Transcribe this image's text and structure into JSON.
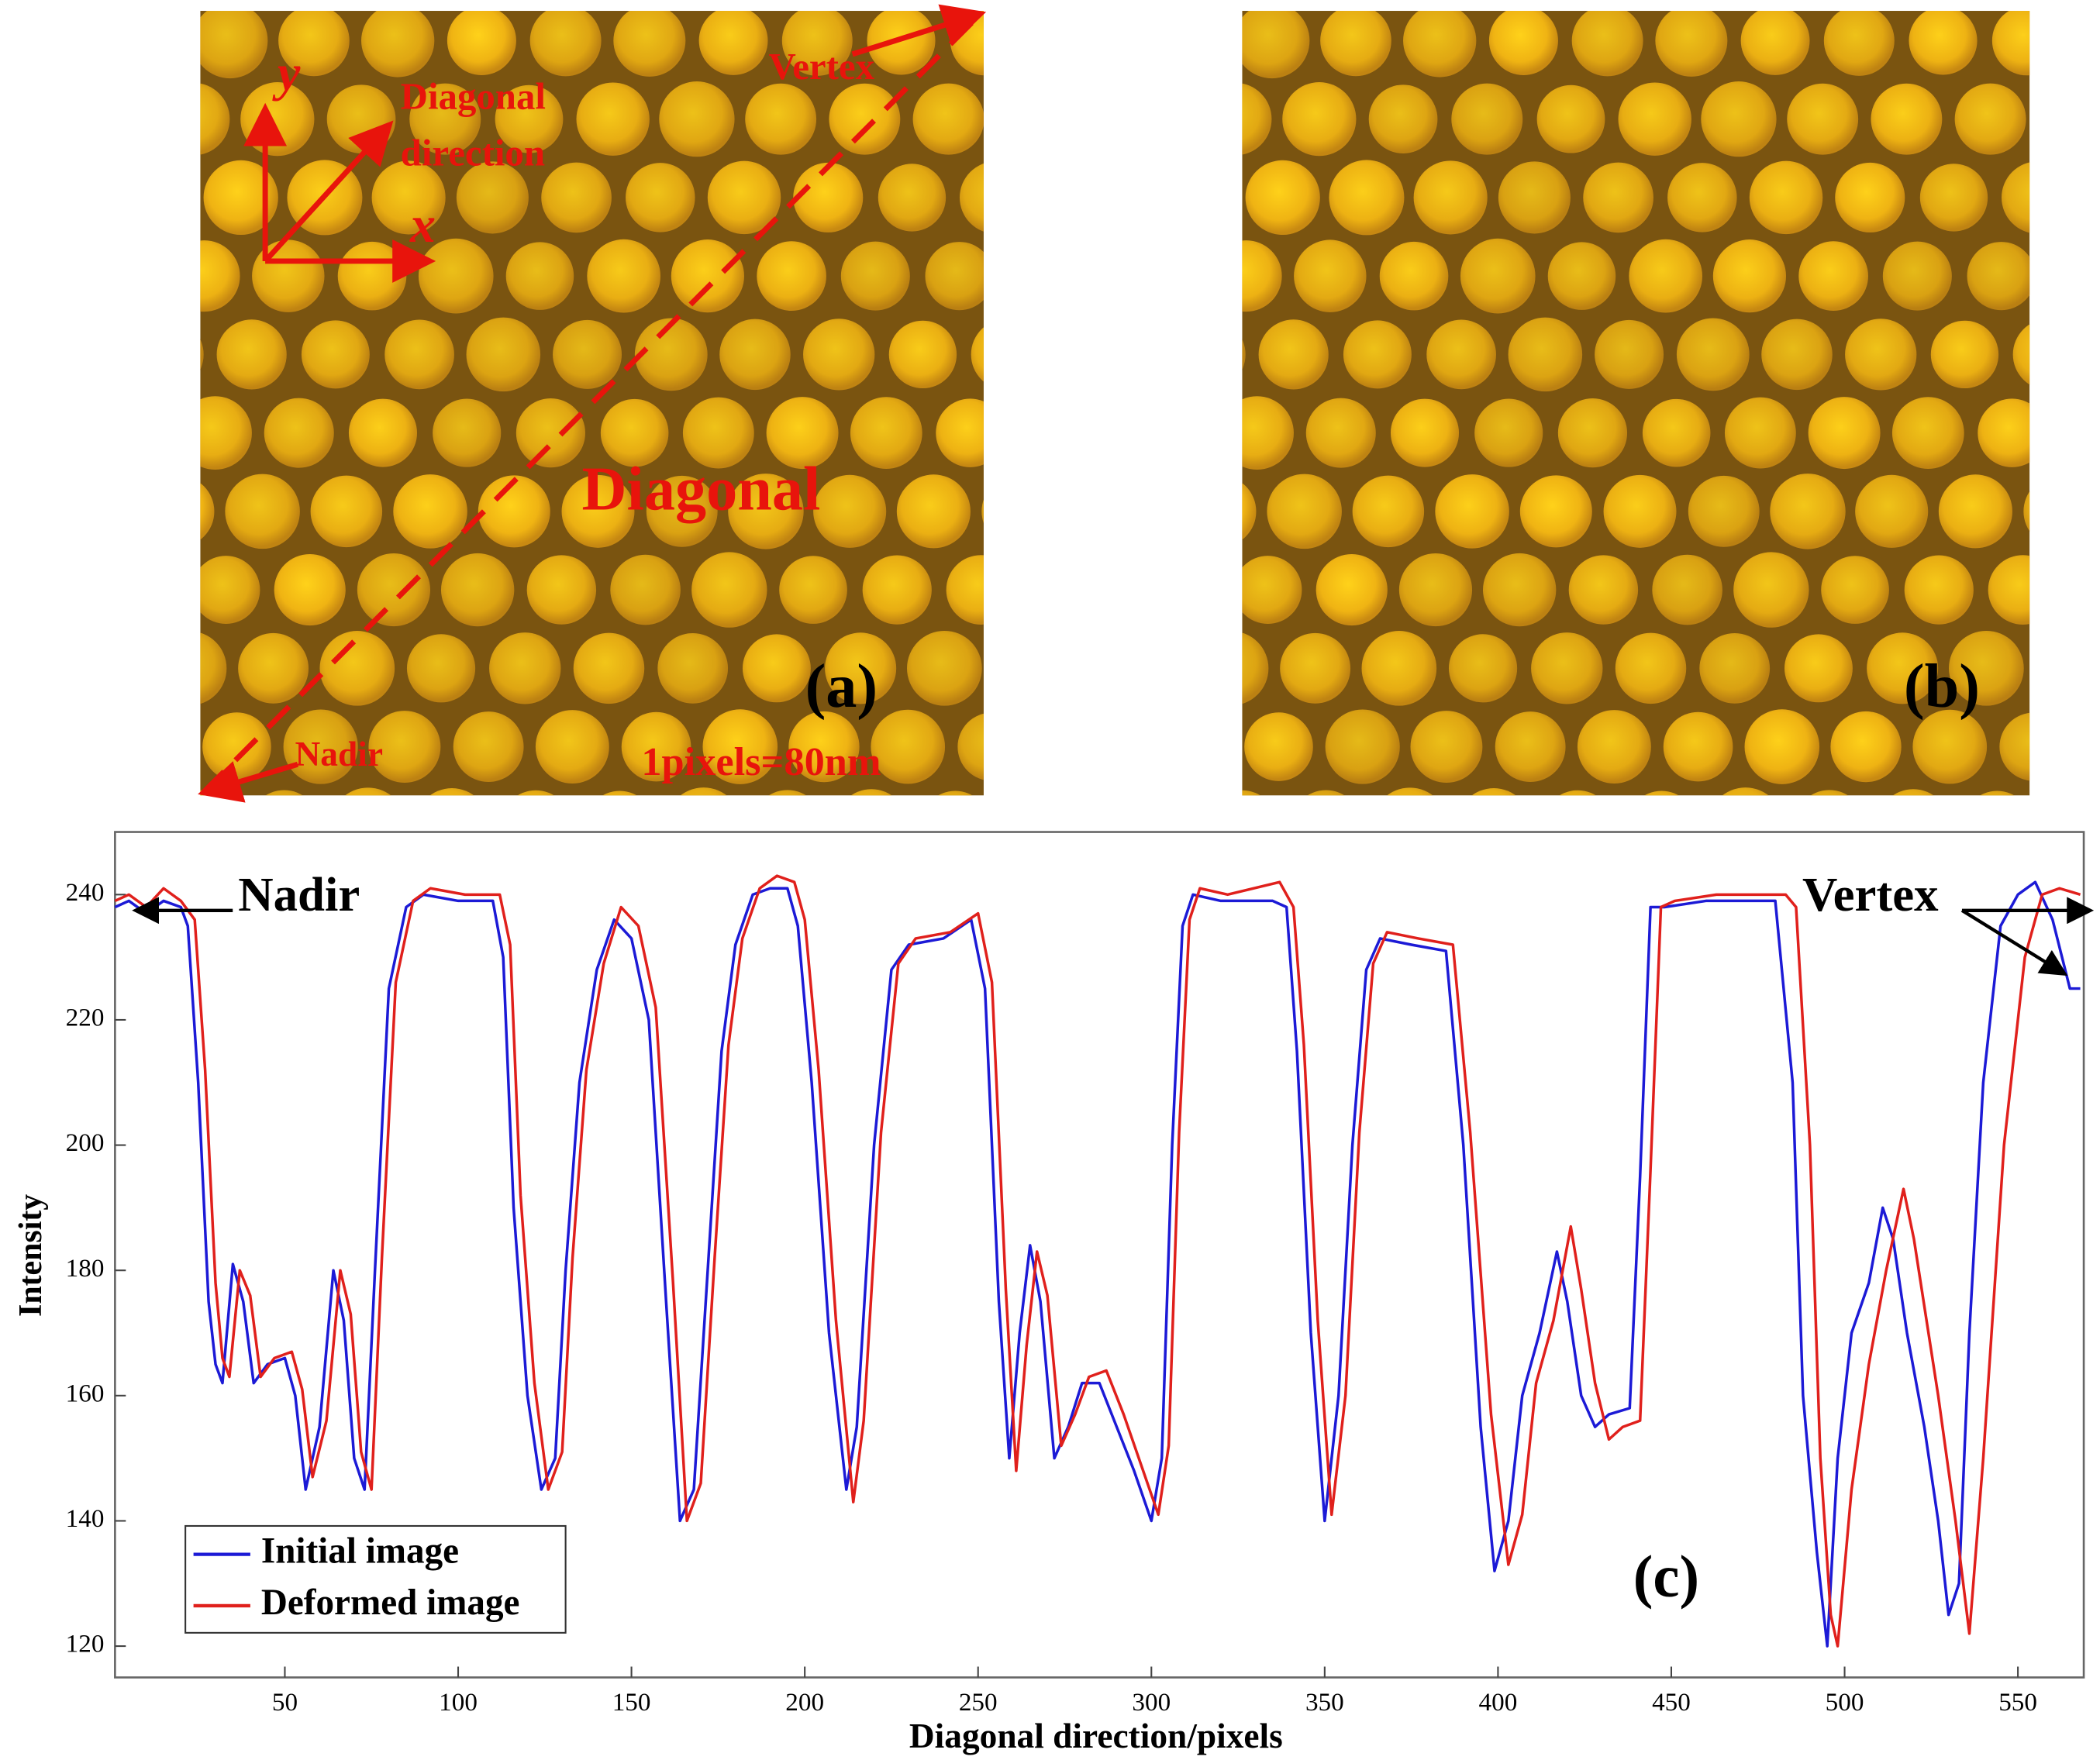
{
  "panels": [
    {
      "label": "(a)",
      "axis_y": "y",
      "axis_x": "x",
      "direction": [
        "Diagonal",
        "direction"
      ],
      "vertex": "Vertex",
      "diagonal": "Diagonal",
      "nadir": "Nadir",
      "scale": "1pixels=80nm"
    },
    {
      "label": "(b)"
    }
  ],
  "chart_data": {
    "type": "line",
    "xlabel": "Diagonal direction/pixels",
    "ylabel": "Intensity",
    "xlim": [
      1,
      569
    ],
    "ylim": [
      115,
      250
    ],
    "xticks": [
      50,
      100,
      150,
      200,
      250,
      300,
      350,
      400,
      450,
      500,
      550
    ],
    "yticks": [
      120,
      140,
      160,
      180,
      200,
      220,
      240
    ],
    "legend": "lower left",
    "annotations": [
      "Nadir",
      "Vertex",
      "(c)"
    ],
    "series": [
      {
        "name": "Initial image",
        "color": "#1c1ad6",
        "x": [
          1,
          5,
          10,
          15,
          20,
          22,
          25,
          28,
          30,
          32,
          35,
          38,
          41,
          45,
          50,
          53,
          56,
          60,
          64,
          67,
          70,
          73,
          76,
          80,
          85,
          90,
          100,
          110,
          113,
          116,
          120,
          124,
          128,
          131,
          135,
          140,
          145,
          150,
          155,
          160,
          164,
          168,
          172,
          176,
          180,
          185,
          190,
          195,
          198,
          202,
          207,
          212,
          215,
          220,
          225,
          230,
          240,
          248,
          252,
          256,
          259,
          262,
          265,
          268,
          272,
          276,
          280,
          285,
          290,
          295,
          300,
          303,
          306,
          309,
          312,
          320,
          335,
          339,
          342,
          346,
          350,
          354,
          358,
          362,
          366,
          375,
          385,
          390,
          395,
          399,
          403,
          407,
          412,
          417,
          420,
          424,
          428,
          432,
          438,
          441,
          444,
          448,
          460,
          480,
          485,
          488,
          492,
          495,
          498,
          502,
          507,
          511,
          514,
          518,
          523,
          527,
          530,
          533,
          536,
          540,
          545,
          550,
          555,
          560,
          565,
          568
        ],
        "values": [
          238,
          239,
          237,
          239,
          238,
          235,
          210,
          175,
          165,
          162,
          181,
          175,
          162,
          165,
          166,
          160,
          145,
          155,
          180,
          172,
          150,
          145,
          180,
          225,
          238,
          240,
          239,
          239,
          230,
          190,
          160,
          145,
          150,
          180,
          210,
          228,
          236,
          233,
          220,
          175,
          140,
          145,
          180,
          215,
          232,
          240,
          241,
          241,
          235,
          210,
          170,
          145,
          155,
          200,
          228,
          232,
          233,
          236,
          225,
          175,
          150,
          170,
          184,
          175,
          150,
          155,
          162,
          162,
          155,
          148,
          140,
          150,
          200,
          235,
          240,
          239,
          239,
          238,
          215,
          170,
          140,
          160,
          200,
          228,
          233,
          232,
          231,
          200,
          155,
          132,
          140,
          160,
          170,
          183,
          175,
          160,
          155,
          157,
          158,
          195,
          238,
          238,
          239,
          239,
          210,
          160,
          135,
          120,
          150,
          170,
          178,
          190,
          185,
          170,
          155,
          140,
          125,
          130,
          170,
          210,
          235,
          240,
          242,
          236,
          225,
          225
        ]
      },
      {
        "name": "Deformed image",
        "color": "#e0201c",
        "x": [
          1,
          5,
          10,
          15,
          20,
          24,
          27,
          30,
          32,
          34,
          37,
          40,
          43,
          47,
          52,
          55,
          58,
          62,
          66,
          69,
          72,
          75,
          78,
          82,
          87,
          92,
          102,
          112,
          115,
          118,
          122,
          126,
          130,
          133,
          137,
          142,
          147,
          152,
          157,
          162,
          166,
          170,
          174,
          178,
          182,
          187,
          192,
          197,
          200,
          204,
          209,
          214,
          217,
          222,
          227,
          232,
          242,
          250,
          254,
          258,
          261,
          264,
          267,
          270,
          274,
          278,
          282,
          287,
          292,
          297,
          302,
          305,
          308,
          311,
          314,
          322,
          337,
          341,
          344,
          348,
          352,
          356,
          360,
          364,
          368,
          377,
          387,
          392,
          398,
          403,
          407,
          411,
          416,
          421,
          424,
          428,
          432,
          436,
          441,
          444,
          447,
          451,
          463,
          483,
          486,
          490,
          493,
          496,
          498,
          502,
          507,
          512,
          517,
          520,
          527,
          532,
          536,
          540,
          546,
          552,
          557,
          562,
          568
        ],
        "values": [
          239,
          240,
          238,
          241,
          239,
          236,
          212,
          178,
          166,
          163,
          180,
          176,
          163,
          166,
          167,
          161,
          147,
          156,
          180,
          173,
          151,
          145,
          182,
          226,
          239,
          241,
          240,
          240,
          232,
          192,
          162,
          145,
          151,
          182,
          212,
          229,
          238,
          235,
          222,
          178,
          140,
          146,
          182,
          216,
          233,
          241,
          243,
          242,
          236,
          212,
          172,
          143,
          156,
          202,
          229,
          233,
          234,
          237,
          226,
          177,
          148,
          168,
          183,
          176,
          152,
          157,
          163,
          164,
          157,
          149,
          141,
          152,
          202,
          236,
          241,
          240,
          242,
          238,
          216,
          172,
          141,
          160,
          202,
          229,
          234,
          233,
          232,
          202,
          157,
          133,
          141,
          162,
          172,
          187,
          177,
          162,
          153,
          155,
          156,
          196,
          238,
          239,
          240,
          240,
          238,
          200,
          150,
          125,
          120,
          145,
          165,
          180,
          193,
          185,
          160,
          140,
          122,
          150,
          200,
          230,
          240,
          241,
          240
        ]
      }
    ]
  }
}
